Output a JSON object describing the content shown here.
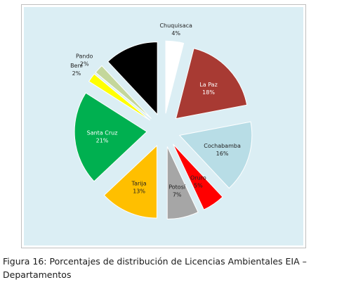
{
  "chart_data": {
    "type": "pie",
    "exploded": true,
    "title": "",
    "slices": [
      {
        "label": "Chuquisaca",
        "value": 4,
        "display": "4%",
        "color": "#ffffff",
        "text_color": "#222222"
      },
      {
        "label": "La Paz",
        "value": 18,
        "display": "18%",
        "color": "#a83a33",
        "text_color": "#ffffff"
      },
      {
        "label": "Cochabamba",
        "value": 16,
        "display": "16%",
        "color": "#b8dde6",
        "text_color": "#222222"
      },
      {
        "label": "Oruro",
        "value": 5,
        "display": "5%",
        "color": "#ff0000",
        "text_color": "#222222"
      },
      {
        "label": "Potosí",
        "value": 7,
        "display": "7%",
        "color": "#a6a6a6",
        "text_color": "#222222"
      },
      {
        "label": "Tarija",
        "value": 13,
        "display": "13%",
        "color": "#ffbf00",
        "text_color": "#222222"
      },
      {
        "label": "Santa Cruz",
        "value": 21,
        "display": "21%",
        "color": "#00b050",
        "text_color": "#ffffff"
      },
      {
        "label": "Beni",
        "value": 2,
        "display": "2%",
        "color": "#ffff00",
        "text_color": "#222222"
      },
      {
        "label": "Pando",
        "value": 2,
        "display": "2%",
        "color": "#c4d79b",
        "text_color": "#222222"
      },
      {
        "label": "",
        "value": 12,
        "display": "",
        "color": "#000000",
        "text_color": "#ffffff"
      }
    ],
    "background_color": "#dbeef4"
  },
  "caption": {
    "label": "Figura 16:",
    "text": "Porcentajes de distribución de Licencias Ambientales EIA – Departamentos"
  }
}
